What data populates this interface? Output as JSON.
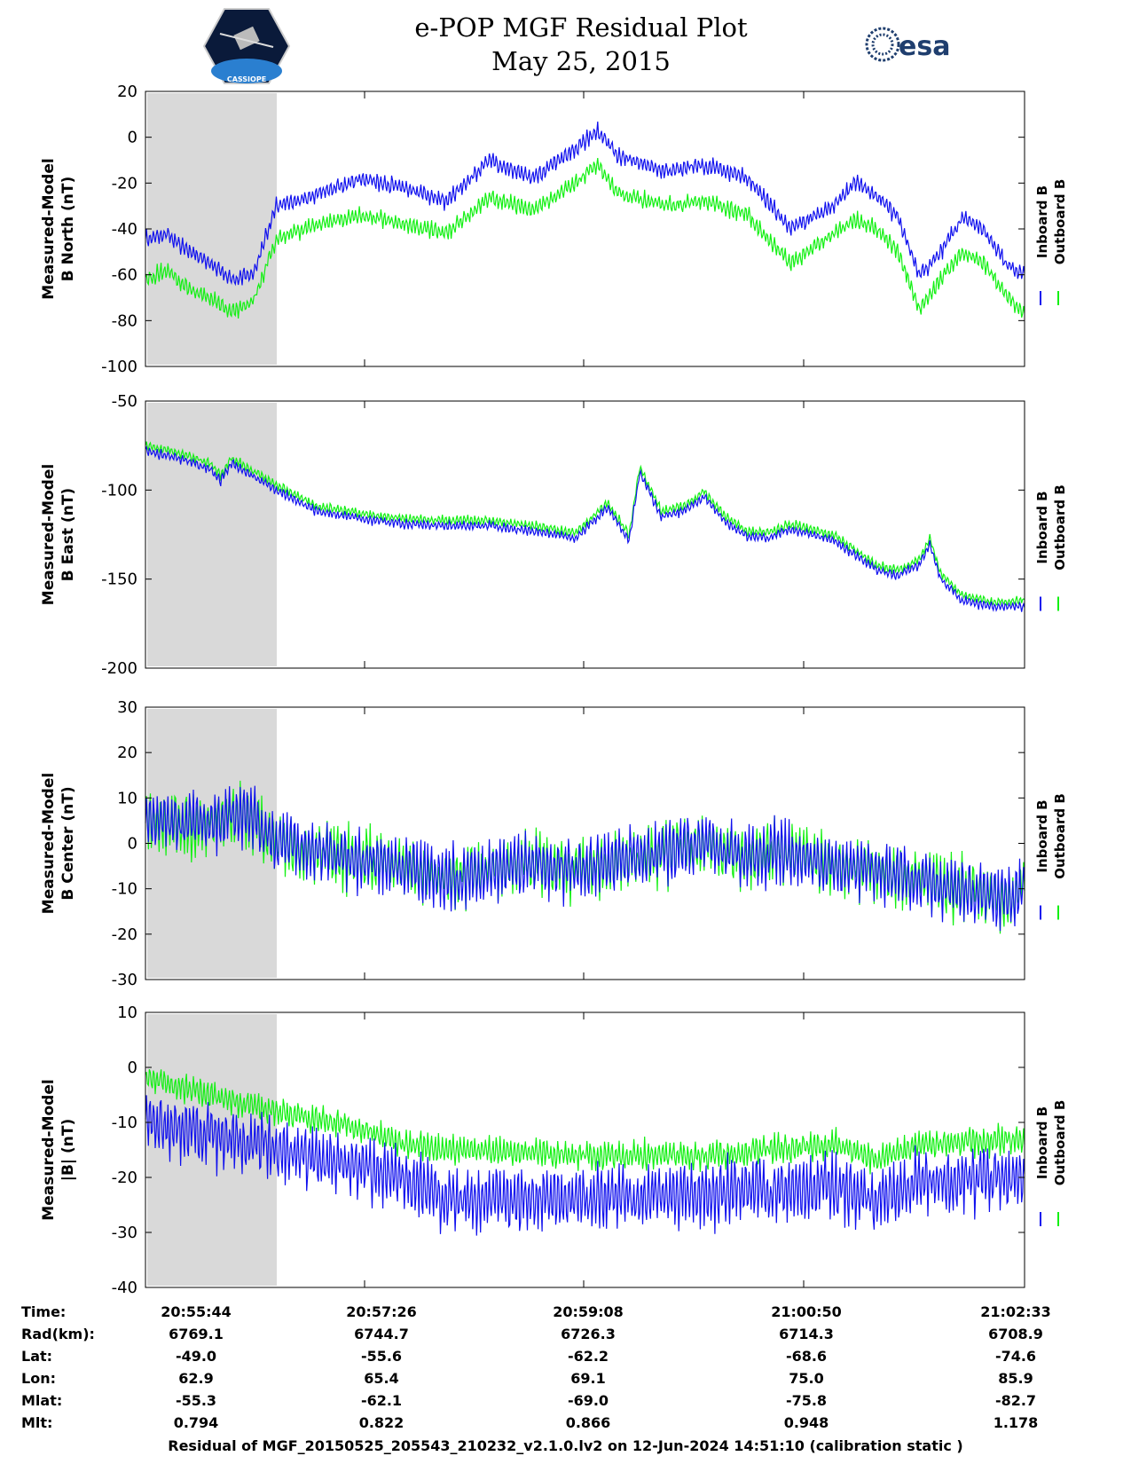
{
  "title": {
    "line1": "e-POP MGF Residual Plot",
    "line2": "May 25, 2015"
  },
  "logos": {
    "left_text": "CASSIOPE",
    "right_text": "esa"
  },
  "colors": {
    "inboard": "#1010ee",
    "outboard": "#12f012",
    "shade": "#d9d9d9"
  },
  "legend": {
    "inboard": "Inboard B",
    "outboard": "Outboard B"
  },
  "chart_data": [
    {
      "type": "line",
      "ylabel": [
        "Measured-Model",
        "B North (nT)"
      ],
      "ylim": [
        -100,
        20
      ],
      "yticks": [
        20,
        0,
        -20,
        -40,
        -60,
        -80,
        -100
      ],
      "x_unit": "seconds since 20:55:44",
      "xlim": [
        0,
        409
      ],
      "shaded_x": [
        0,
        61
      ],
      "series": [
        {
          "name": "Inboard B",
          "x": [
            0,
            10,
            20,
            30,
            40,
            50,
            61,
            80,
            100,
            120,
            140,
            160,
            180,
            200,
            210,
            220,
            240,
            260,
            280,
            300,
            320,
            330,
            340,
            350,
            360,
            370,
            380,
            390,
            400,
            409
          ],
          "values": [
            -45,
            -42,
            -50,
            -55,
            -62,
            -60,
            -30,
            -25,
            -18,
            -22,
            -28,
            -10,
            -18,
            -5,
            3,
            -8,
            -15,
            -12,
            -18,
            -40,
            -30,
            -20,
            -25,
            -35,
            -60,
            -50,
            -35,
            -40,
            -55,
            -60
          ]
        },
        {
          "name": "Outboard B",
          "x": [
            0,
            10,
            20,
            30,
            40,
            50,
            61,
            80,
            100,
            120,
            140,
            160,
            180,
            200,
            210,
            220,
            240,
            260,
            280,
            300,
            320,
            330,
            340,
            350,
            360,
            370,
            380,
            390,
            400,
            409
          ],
          "values": [
            -62,
            -58,
            -66,
            -70,
            -76,
            -72,
            -44,
            -38,
            -34,
            -38,
            -42,
            -26,
            -32,
            -20,
            -12,
            -24,
            -30,
            -28,
            -34,
            -55,
            -42,
            -36,
            -40,
            -50,
            -75,
            -62,
            -50,
            -55,
            -68,
            -78
          ]
        }
      ]
    },
    {
      "type": "line",
      "ylabel": [
        "Measured-Model",
        "B East (nT)"
      ],
      "ylim": [
        -200,
        -50
      ],
      "yticks": [
        -50,
        -100,
        -150,
        -200
      ],
      "x_unit": "seconds since 20:55:44",
      "xlim": [
        0,
        409
      ],
      "shaded_x": [
        0,
        61
      ],
      "series": [
        {
          "name": "Inboard B",
          "x": [
            0,
            15,
            30,
            35,
            40,
            61,
            80,
            100,
            120,
            140,
            160,
            180,
            200,
            215,
            225,
            230,
            240,
            250,
            260,
            270,
            280,
            290,
            300,
            320,
            340,
            350,
            360,
            365,
            370,
            380,
            395,
            409
          ],
          "values": [
            -78,
            -82,
            -88,
            -95,
            -85,
            -100,
            -112,
            -116,
            -119,
            -120,
            -120,
            -123,
            -127,
            -110,
            -128,
            -90,
            -115,
            -112,
            -104,
            -118,
            -126,
            -127,
            -122,
            -128,
            -145,
            -148,
            -142,
            -130,
            -150,
            -162,
            -166,
            -165
          ]
        },
        {
          "name": "Outboard B",
          "x": [
            0,
            15,
            30,
            35,
            40,
            61,
            80,
            100,
            120,
            140,
            160,
            180,
            200,
            215,
            225,
            230,
            240,
            250,
            260,
            270,
            280,
            290,
            300,
            320,
            340,
            350,
            360,
            365,
            370,
            380,
            395,
            409
          ],
          "values": [
            -75,
            -79,
            -85,
            -92,
            -82,
            -97,
            -109,
            -113,
            -116,
            -117,
            -117,
            -120,
            -124,
            -107,
            -125,
            -87,
            -112,
            -109,
            -101,
            -115,
            -123,
            -124,
            -119,
            -125,
            -142,
            -145,
            -139,
            -127,
            -147,
            -159,
            -163,
            -162
          ]
        }
      ]
    },
    {
      "type": "line",
      "ylabel": [
        "Measured-Model",
        "B Center (nT)"
      ],
      "ylim": [
        -30,
        30
      ],
      "yticks": [
        30,
        20,
        10,
        0,
        -10,
        -20,
        -30
      ],
      "x_unit": "seconds since 20:55:44",
      "xlim": [
        0,
        409
      ],
      "shaded_x": [
        0,
        61
      ],
      "series": [
        {
          "name": "Inboard B",
          "x": [
            0,
            20,
            40,
            50,
            61,
            80,
            100,
            120,
            140,
            160,
            180,
            200,
            220,
            240,
            260,
            280,
            300,
            320,
            340,
            360,
            380,
            400,
            409
          ],
          "values": [
            5,
            4,
            6,
            5,
            0,
            -2,
            -4,
            -5,
            -8,
            -6,
            -4,
            -6,
            -4,
            -2,
            0,
            -3,
            -2,
            -5,
            -6,
            -8,
            -10,
            -12,
            -10
          ]
        },
        {
          "name": "Outboard B",
          "x": [
            0,
            20,
            40,
            50,
            61,
            80,
            100,
            120,
            140,
            160,
            180,
            200,
            220,
            240,
            260,
            280,
            300,
            320,
            340,
            360,
            380,
            400,
            409
          ],
          "values": [
            5,
            4,
            6,
            5,
            0,
            -2,
            -4,
            -5,
            -8,
            -6,
            -4,
            -6,
            -4,
            -2,
            0,
            -3,
            -2,
            -5,
            -6,
            -8,
            -10,
            -12,
            -10
          ]
        }
      ]
    },
    {
      "type": "line",
      "ylabel": [
        "Measured-Model",
        "|B| (nT)"
      ],
      "ylim": [
        -40,
        10
      ],
      "yticks": [
        10,
        0,
        -10,
        -20,
        -30,
        -40
      ],
      "x_unit": "seconds since 20:55:44",
      "xlim": [
        0,
        409
      ],
      "shaded_x": [
        0,
        61
      ],
      "series": [
        {
          "name": "Inboard B",
          "x": [
            0,
            30,
            61,
            100,
            120,
            140,
            200,
            260,
            320,
            340,
            360,
            409
          ],
          "values": [
            -10,
            -12,
            -15,
            -18,
            -20,
            -24,
            -24,
            -23,
            -22,
            -24,
            -21,
            -20
          ]
        },
        {
          "name": "Outboard B",
          "x": [
            0,
            30,
            61,
            100,
            120,
            140,
            200,
            260,
            320,
            340,
            360,
            409
          ],
          "values": [
            -2,
            -5,
            -8,
            -11,
            -14,
            -15,
            -16,
            -16,
            -14,
            -17,
            -14,
            -13
          ]
        }
      ]
    }
  ],
  "ephemeris": {
    "labels": [
      "Time:",
      "Rad(km):",
      "Lat:",
      "Lon:",
      "Mlat:",
      "Mlt:"
    ],
    "columns": [
      [
        "20:55:44",
        "6769.1",
        "-49.0",
        "62.9",
        "-55.3",
        "0.794"
      ],
      [
        "20:57:26",
        "6744.7",
        "-55.6",
        "65.4",
        "-62.1",
        "0.822"
      ],
      [
        "20:59:08",
        "6726.3",
        "-62.2",
        "69.1",
        "-69.0",
        "0.866"
      ],
      [
        "21:00:50",
        "6714.3",
        "-68.6",
        "75.0",
        "-75.8",
        "0.948"
      ],
      [
        "21:02:33",
        "6708.9",
        "-74.6",
        "85.9",
        "-82.7",
        "1.178"
      ]
    ]
  },
  "footer": "Residual of MGF_20150525_205543_210232_v2.1.0.lv2 on 12-Jun-2024 14:51:10 (calibration static )"
}
